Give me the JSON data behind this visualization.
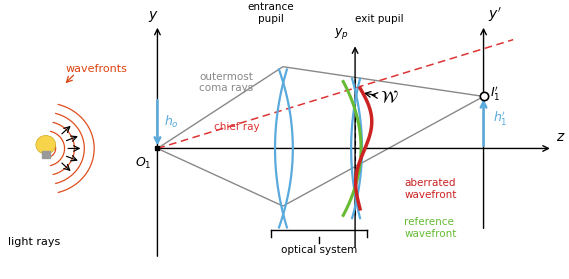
{
  "bg_color": "#ffffff",
  "blue_color": "#5aaadd",
  "red_color": "#cc2222",
  "green_color": "#66bb33",
  "gray_color": "#999999",
  "wavefront_orange": "#dd4411",
  "dashed_red": "#dd3333",
  "black": "#000000",
  "figw": 5.69,
  "figh": 2.79,
  "dpi": 100,
  "xlim": [
    0,
    5.69
  ],
  "ylim": [
    0,
    2.79
  ],
  "zy": 1.39,
  "yx": 1.55,
  "ep_x": 2.82,
  "xp_x": 3.55,
  "im_x": 4.85,
  "O1y": 1.39,
  "I1y": 1.95,
  "bulb_x": 0.42,
  "bulb_y": 1.39
}
